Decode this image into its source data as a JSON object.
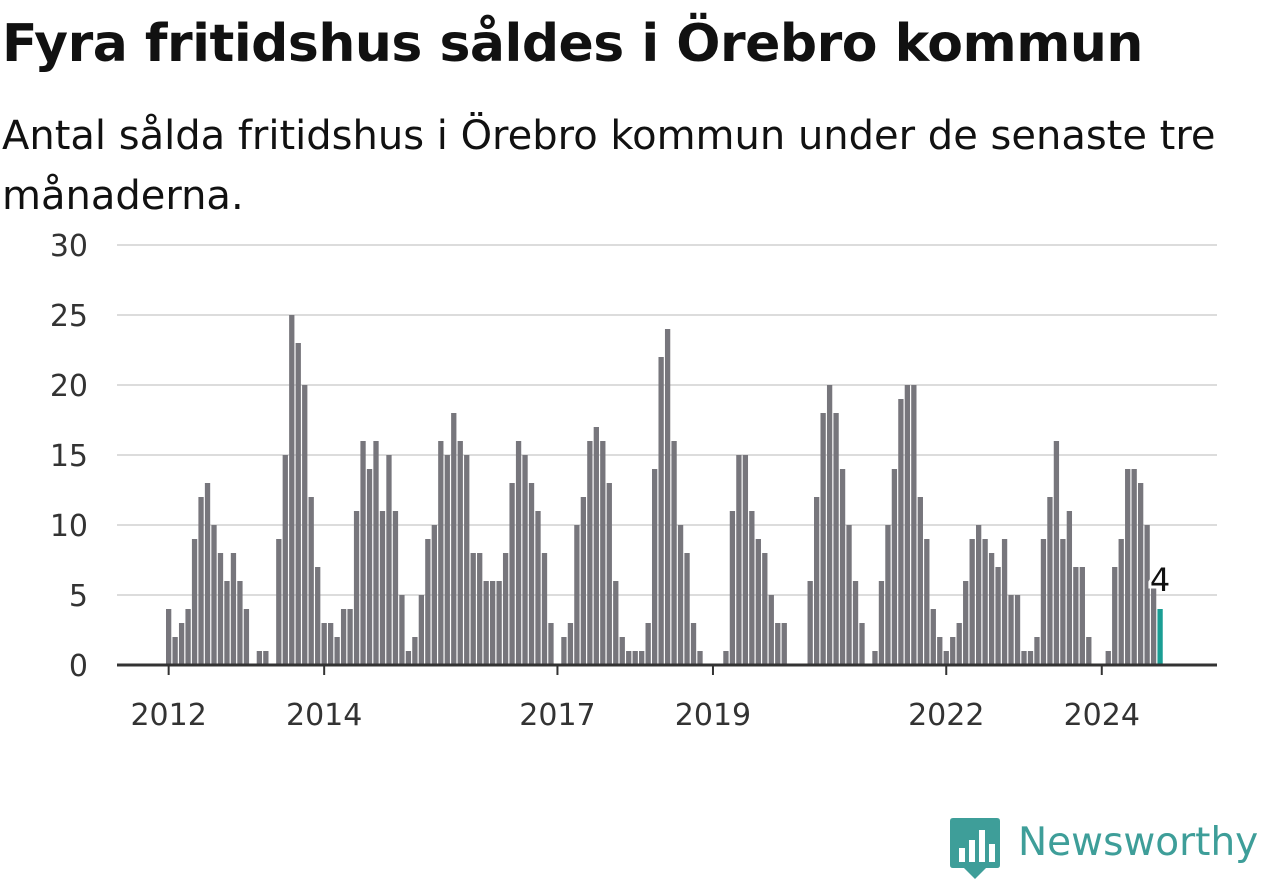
{
  "title": "Fyra fritidshus såldes i Örebro kommun",
  "subtitle": "Antal sålda fritidshus i Örebro kommun under de senaste tre månaderna.",
  "brand": {
    "name": "Newsworthy",
    "color": "#3e9e99",
    "icon": "bar-chart-speech-icon"
  },
  "colors": {
    "bar": "#77767c",
    "highlight": "#1a9e94",
    "grid": "#dcdcdc",
    "axis": "#333333"
  },
  "chart_data": {
    "type": "bar",
    "title": "Fyra fritidshus såldes i Örebro kommun",
    "xlabel": "",
    "ylabel": "",
    "ylim": [
      0,
      30
    ],
    "yticks": [
      "0",
      "5",
      "10",
      "15",
      "20",
      "25",
      "30"
    ],
    "xticks": [
      {
        "label": "2012",
        "index": 0
      },
      {
        "label": "2014",
        "index": 24
      },
      {
        "label": "2017",
        "index": 60
      },
      {
        "label": "2019",
        "index": 84
      },
      {
        "label": "2022",
        "index": 120
      },
      {
        "label": "2024",
        "index": 144
      }
    ],
    "grid": true,
    "start": "2012-01",
    "frequency": "monthly",
    "values": [
      4,
      2,
      3,
      4,
      9,
      12,
      13,
      10,
      8,
      6,
      8,
      6,
      4,
      0,
      1,
      1,
      0,
      9,
      15,
      25,
      23,
      20,
      12,
      7,
      3,
      3,
      2,
      4,
      4,
      11,
      16,
      14,
      16,
      11,
      15,
      11,
      5,
      1,
      2,
      5,
      9,
      10,
      16,
      15,
      18,
      16,
      15,
      8,
      8,
      6,
      6,
      6,
      8,
      13,
      16,
      15,
      13,
      11,
      8,
      3,
      0,
      2,
      3,
      10,
      12,
      16,
      17,
      16,
      13,
      6,
      2,
      1,
      1,
      1,
      3,
      14,
      22,
      24,
      16,
      10,
      8,
      3,
      1,
      0,
      0,
      0,
      1,
      11,
      15,
      15,
      11,
      9,
      8,
      5,
      3,
      3,
      0,
      0,
      0,
      6,
      12,
      18,
      20,
      18,
      14,
      10,
      6,
      3,
      0,
      1,
      6,
      10,
      14,
      19,
      20,
      20,
      12,
      9,
      4,
      2,
      1,
      2,
      3,
      6,
      9,
      10,
      9,
      8,
      7,
      9,
      5,
      5,
      1,
      1,
      2,
      9,
      12,
      16,
      9,
      11,
      7,
      7,
      2,
      0,
      0,
      1,
      7,
      9,
      14,
      14,
      13,
      10,
      6,
      4
    ],
    "highlight": {
      "index": 153,
      "value": 4,
      "label": "4"
    }
  }
}
